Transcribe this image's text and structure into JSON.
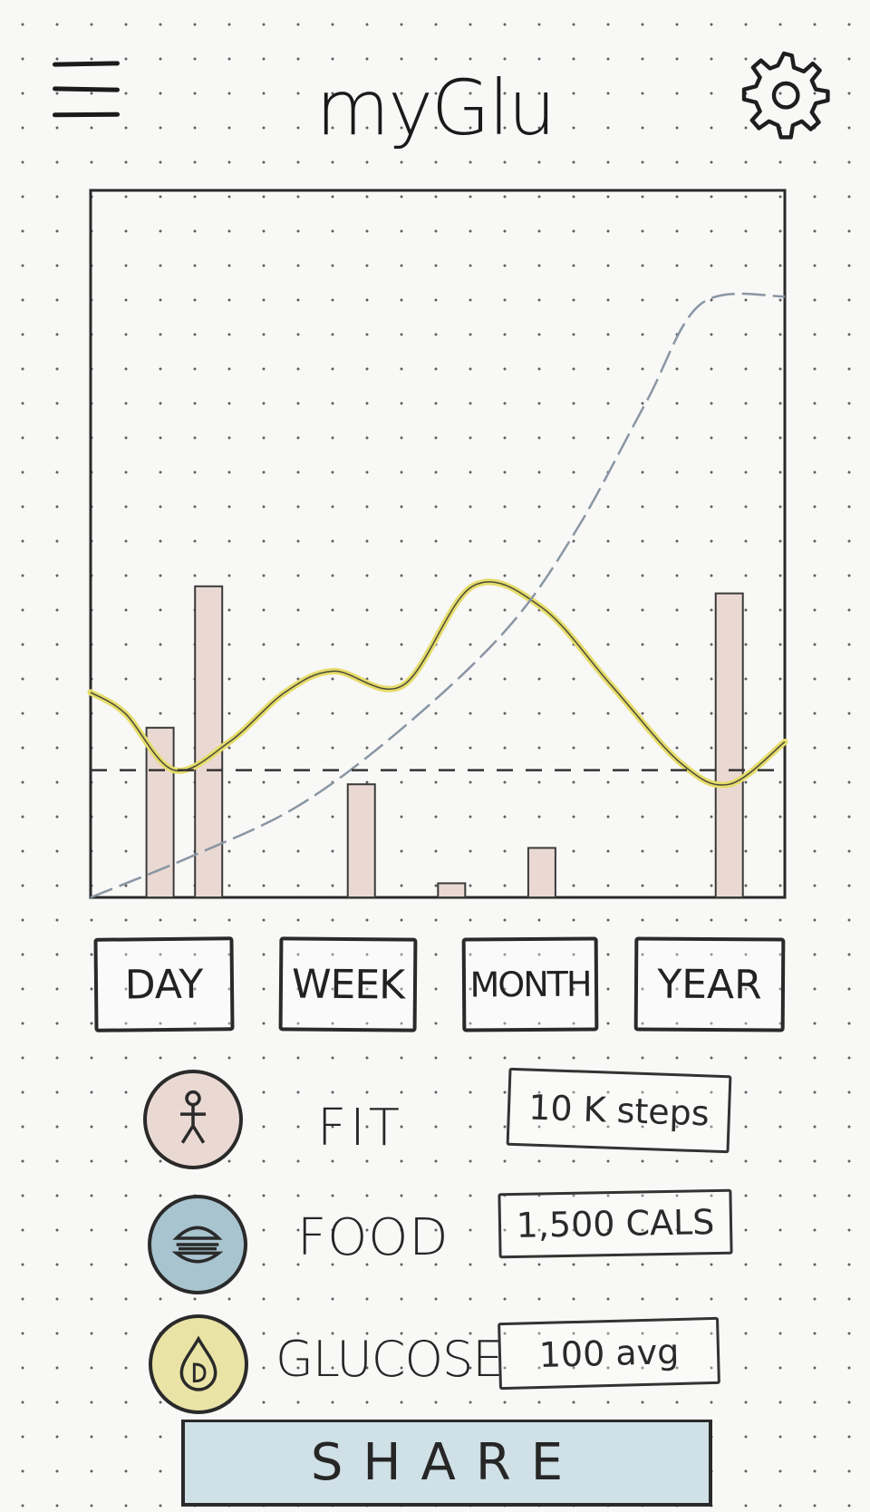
{
  "header": {
    "title": "myGlu",
    "menu_icon": "hamburger-menu-icon",
    "settings_icon": "gear-icon"
  },
  "chart_data": {
    "type": "bar",
    "title": "",
    "xlabel": "",
    "ylabel": "",
    "ylim": [
      0,
      100
    ],
    "grid": false,
    "series": [
      {
        "type": "bar",
        "x": [
          10,
          17,
          39,
          52,
          65,
          92
        ],
        "values": [
          24,
          44,
          16,
          2,
          7,
          43
        ],
        "color": "#ead9d3"
      },
      {
        "type": "line",
        "x": [
          0,
          5,
          12,
          20,
          28,
          35,
          45,
          55,
          65,
          75,
          85,
          92,
          100
        ],
        "values": [
          29,
          26,
          18,
          22,
          29,
          32,
          30,
          44,
          41,
          30,
          19,
          16,
          22
        ],
        "color": "#e6dc6a"
      },
      {
        "type": "line",
        "x": [
          0,
          15,
          30,
          45,
          60,
          70,
          80,
          88,
          100
        ],
        "values": [
          0,
          6,
          13,
          24,
          38,
          52,
          70,
          84,
          85
        ],
        "color": "#8a96a3",
        "style": "dashed"
      },
      {
        "type": "threshold",
        "x": [
          0,
          100
        ],
        "values": [
          18,
          18
        ],
        "color": "#333333",
        "style": "dashed"
      }
    ]
  },
  "range_buttons": [
    {
      "id": "day",
      "label": "DAY"
    },
    {
      "id": "week",
      "label": "WEEK"
    },
    {
      "id": "month",
      "label": "MONTH"
    },
    {
      "id": "year",
      "label": "YEAR"
    }
  ],
  "stats": {
    "fit": {
      "label": "FIT",
      "value": "10 K steps",
      "icon": "stick-figure-icon",
      "color": "#ead9d3"
    },
    "food": {
      "label": "FOOD",
      "value": "1,500 CALS",
      "icon": "burger-icon",
      "color": "#a8c4cf"
    },
    "glucose": {
      "label": "GLUCOSE",
      "value": "100 avg",
      "icon": "blood-drop-icon",
      "color": "#e9e3a6"
    }
  },
  "share": {
    "label": "SHARE",
    "color": "#cfe0e6"
  }
}
